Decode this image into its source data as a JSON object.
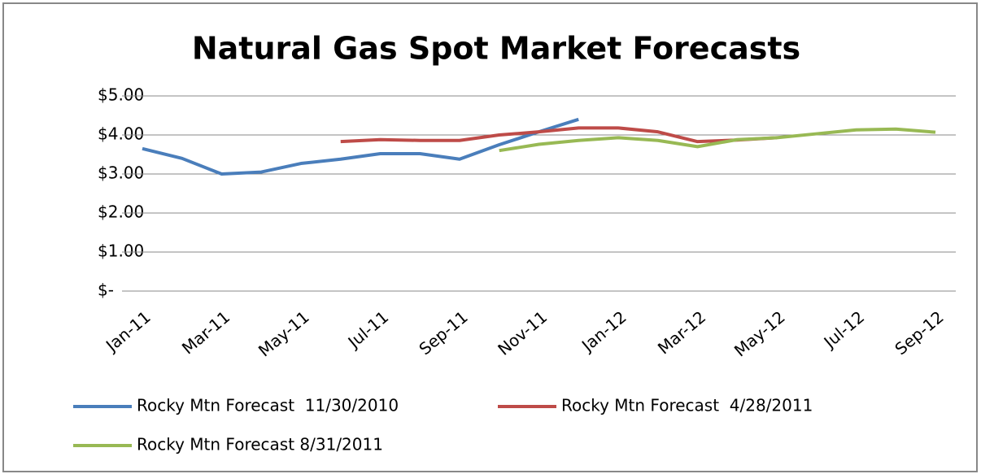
{
  "chart_data": {
    "type": "line",
    "title": "Natural Gas Spot Market Forecasts",
    "categories": [
      "Jan-11",
      null,
      "Mar-11",
      null,
      "May-11",
      null,
      "Jul-11",
      null,
      "Sep-11",
      null,
      "Nov-11",
      null,
      "Jan-12",
      null,
      "Mar-12",
      null,
      "May-12",
      null,
      "Jul-12",
      null,
      "Sep-12"
    ],
    "series": [
      {
        "name": "Rocky Mtn Forecast  11/30/2010",
        "color": "#4a7ebb",
        "values": [
          3.65,
          3.4,
          3.0,
          3.05,
          3.27,
          3.38,
          3.52,
          3.52,
          3.38,
          3.75,
          4.08,
          4.4,
          null,
          null,
          null,
          null,
          null,
          null,
          null,
          null,
          null
        ]
      },
      {
        "name": "Rocky Mtn Forecast  4/28/2011",
        "color": "#be4b48",
        "values": [
          null,
          null,
          null,
          null,
          null,
          3.83,
          3.88,
          3.86,
          3.86,
          4.0,
          4.08,
          4.18,
          4.18,
          4.08,
          3.83,
          3.87,
          3.93,
          null,
          null,
          null,
          null
        ]
      },
      {
        "name": "Rocky Mtn Forecast 8/31/2011",
        "color": "#98b954",
        "values": [
          null,
          null,
          null,
          null,
          null,
          null,
          null,
          null,
          null,
          3.6,
          3.76,
          3.86,
          3.93,
          3.86,
          3.7,
          3.88,
          3.93,
          4.03,
          4.13,
          4.15,
          4.07
        ]
      }
    ],
    "ylim": [
      0,
      5
    ],
    "yticks": [
      {
        "value": 0,
        "label": "$-"
      },
      {
        "value": 1,
        "label": "$1.00"
      },
      {
        "value": 2,
        "label": "$2.00"
      },
      {
        "value": 3,
        "label": "$3.00"
      },
      {
        "value": 4,
        "label": "$4.00"
      },
      {
        "value": 5,
        "label": "$5.00"
      }
    ],
    "grid": true
  }
}
